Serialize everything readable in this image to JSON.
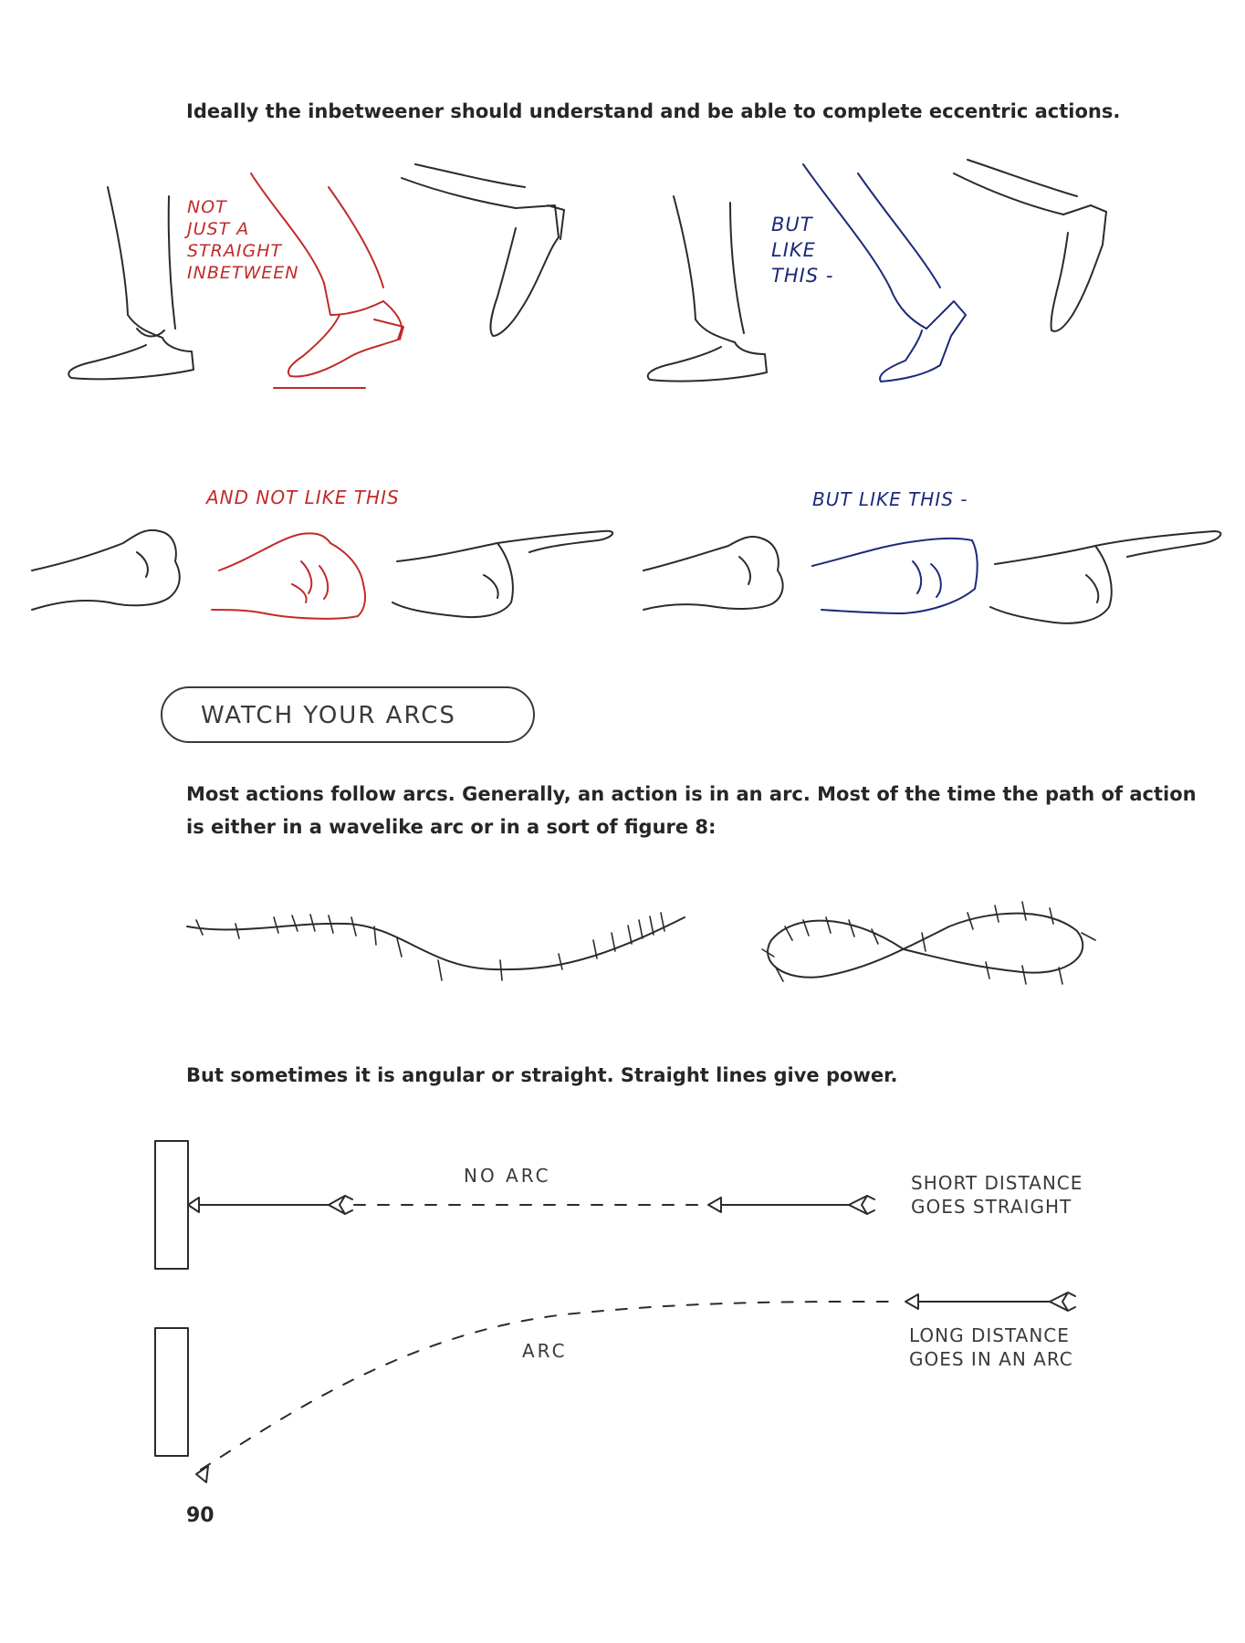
{
  "intro": "Ideally the inbetweener should understand and be able to complete eccentric actions.",
  "feet": {
    "wrong_label": [
      "NOT",
      "JUST A",
      "STRAIGHT",
      "INBETWEEN"
    ],
    "right_label": [
      "BUT",
      "LIKE",
      "THIS -"
    ]
  },
  "hands": {
    "wrong_label": "AND NOT LIKE THIS",
    "right_label": "BUT LIKE THIS -"
  },
  "heading_box": "WATCH YOUR ARCS",
  "arcs_paragraph": [
    "Most actions follow arcs. Generally, an action is in an arc. Most of the time the path of action",
    "is either in a wavelike arc or in a sort of figure 8:"
  ],
  "straight_paragraph": "But sometimes it is angular or straight. Straight lines give power.",
  "diagram": {
    "no_arc_label": "NO ARC",
    "short_label": [
      "SHORT DISTANCE",
      "GOES STRAIGHT"
    ],
    "arc_label": "ARC",
    "long_label": [
      "LONG DISTANCE",
      "GOES IN AN ARC"
    ]
  },
  "page_number": "90",
  "colors": {
    "wrong": "#c22a2a",
    "right": "#1c2a7a",
    "pencil": "#2b2b2b"
  }
}
